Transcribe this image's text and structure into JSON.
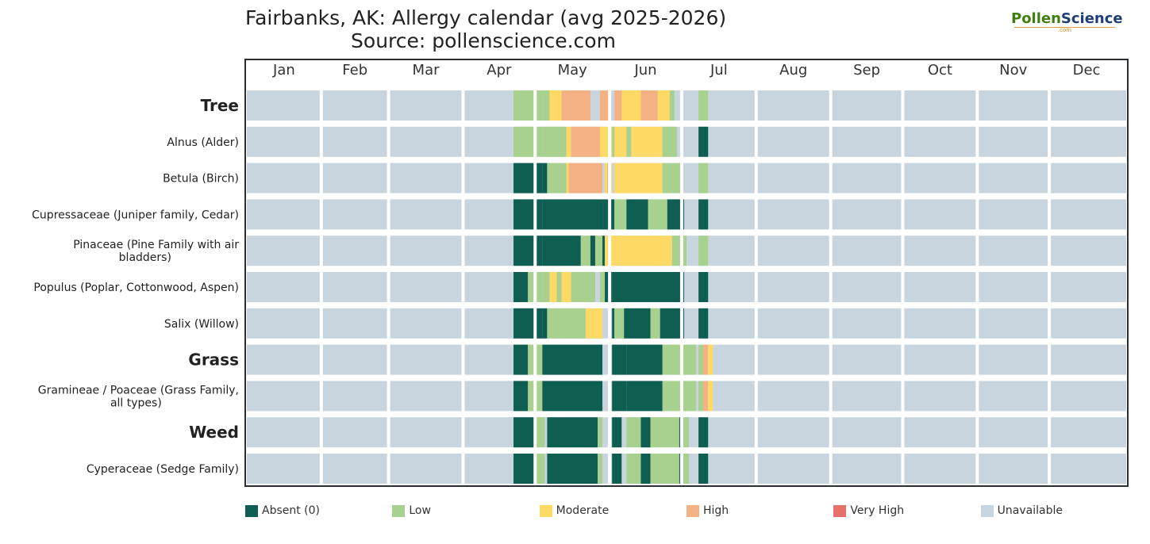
{
  "title_line1": "Fairbanks, AK: Allergy calendar (avg 2025-2026)",
  "title_line2": "Source: pollenscience.com",
  "logo": {
    "part1": "Pollen",
    "part2": "Science",
    "sub": ".com"
  },
  "chart_data": {
    "type": "heatmap",
    "title": "Fairbanks, AK: Allergy calendar (avg 2025-2026)",
    "subtitle": "Source: pollenscience.com",
    "x_axis": {
      "unit": "day of year",
      "range": [
        1,
        366
      ],
      "months": [
        "Jan",
        "Feb",
        "Mar",
        "Apr",
        "May",
        "Jun",
        "Jul",
        "Aug",
        "Sep",
        "Oct",
        "Nov",
        "Dec"
      ]
    },
    "levels": [
      {
        "key": "absent",
        "label": "Absent (0)",
        "color": "#0f5e52"
      },
      {
        "key": "low",
        "label": "Low",
        "color": "#a8d18f"
      },
      {
        "key": "moderate",
        "label": "Moderate",
        "color": "#fdd965"
      },
      {
        "key": "high",
        "label": "High",
        "color": "#f4b183"
      },
      {
        "key": "very_high",
        "label": "Very High",
        "color": "#e6716b"
      },
      {
        "key": "unavailable",
        "label": "Unavailable",
        "color": "#c9d5de"
      }
    ],
    "default_level": "unavailable",
    "rows": [
      {
        "label": "Tree",
        "category": true,
        "segments": [
          [
            112,
            123,
            "low"
          ],
          [
            124,
            126,
            "low"
          ],
          [
            127,
            129,
            "moderate"
          ],
          [
            130,
            131,
            "moderate"
          ],
          [
            132,
            143,
            "high"
          ],
          [
            148,
            151,
            "high"
          ],
          [
            154,
            156,
            "high"
          ],
          [
            157,
            164,
            "moderate"
          ],
          [
            165,
            171,
            "high"
          ],
          [
            172,
            176,
            "moderate"
          ],
          [
            177,
            178,
            "low"
          ],
          [
            189,
            192,
            "low"
          ]
        ]
      },
      {
        "label": "Alnus (Alder)",
        "segments": [
          [
            112,
            123,
            "low"
          ],
          [
            124,
            133,
            "low"
          ],
          [
            134,
            135,
            "moderate"
          ],
          [
            136,
            147,
            "high"
          ],
          [
            148,
            152,
            "moderate"
          ],
          [
            153,
            153,
            "low"
          ],
          [
            154,
            158,
            "moderate"
          ],
          [
            159,
            160,
            "low"
          ],
          [
            161,
            173,
            "moderate"
          ],
          [
            174,
            179,
            "low"
          ],
          [
            189,
            192,
            "absent"
          ]
        ]
      },
      {
        "label": "Betula (Birch)",
        "segments": [
          [
            112,
            123,
            "absent"
          ],
          [
            124,
            125,
            "absent"
          ],
          [
            126,
            133,
            "low"
          ],
          [
            134,
            134,
            "moderate"
          ],
          [
            135,
            147,
            "high"
          ],
          [
            148,
            148,
            "high"
          ],
          [
            150,
            150,
            "moderate"
          ],
          [
            151,
            151,
            "high"
          ],
          [
            152,
            152,
            "moderate"
          ],
          [
            154,
            173,
            "moderate"
          ],
          [
            174,
            181,
            "low"
          ],
          [
            189,
            192,
            "low"
          ]
        ]
      },
      {
        "label": "Cupressaceae (Juniper family, Cedar)",
        "segments": [
          [
            112,
            123,
            "absent"
          ],
          [
            124,
            148,
            "absent"
          ],
          [
            149,
            153,
            "absent"
          ],
          [
            154,
            158,
            "low"
          ],
          [
            159,
            167,
            "absent"
          ],
          [
            168,
            175,
            "low"
          ],
          [
            176,
            182,
            "absent"
          ],
          [
            189,
            192,
            "absent"
          ]
        ]
      },
      {
        "label": "Pinaceae (Pine Family with air bladders)",
        "segments": [
          [
            112,
            123,
            "absent"
          ],
          [
            124,
            139,
            "absent"
          ],
          [
            140,
            143,
            "low"
          ],
          [
            144,
            145,
            "absent"
          ],
          [
            146,
            148,
            "low"
          ],
          [
            149,
            149,
            "absent"
          ],
          [
            150,
            155,
            "moderate"
          ],
          [
            156,
            177,
            "moderate"
          ],
          [
            178,
            183,
            "low"
          ],
          [
            189,
            192,
            "low"
          ]
        ]
      },
      {
        "label": "Populus (Poplar, Cottonwood, Aspen)",
        "segments": [
          [
            112,
            117,
            "absent"
          ],
          [
            118,
            123,
            "low"
          ],
          [
            124,
            126,
            "low"
          ],
          [
            127,
            129,
            "moderate"
          ],
          [
            130,
            131,
            "low"
          ],
          [
            132,
            135,
            "moderate"
          ],
          [
            136,
            145,
            "low"
          ],
          [
            148,
            149,
            "low"
          ],
          [
            150,
            152,
            "absent"
          ],
          [
            153,
            182,
            "absent"
          ],
          [
            189,
            192,
            "absent"
          ]
        ]
      },
      {
        "label": "Salix (Willow)",
        "segments": [
          [
            112,
            123,
            "absent"
          ],
          [
            124,
            125,
            "absent"
          ],
          [
            126,
            141,
            "low"
          ],
          [
            142,
            148,
            "moderate"
          ],
          [
            153,
            153,
            "absent"
          ],
          [
            154,
            157,
            "low"
          ],
          [
            158,
            168,
            "absent"
          ],
          [
            169,
            172,
            "low"
          ],
          [
            173,
            182,
            "absent"
          ],
          [
            189,
            192,
            "absent"
          ]
        ]
      },
      {
        "label": "Grass",
        "category": true,
        "segments": [
          [
            112,
            117,
            "absent"
          ],
          [
            118,
            123,
            "low"
          ],
          [
            124,
            148,
            "absent"
          ],
          [
            153,
            158,
            "absent"
          ],
          [
            159,
            173,
            "absent"
          ],
          [
            174,
            187,
            "low"
          ],
          [
            189,
            190,
            "low"
          ],
          [
            191,
            192,
            "high"
          ],
          [
            193,
            194,
            "moderate"
          ]
        ]
      },
      {
        "label": "Gramineae / Poaceae (Grass Family, all types)",
        "segments": [
          [
            112,
            117,
            "absent"
          ],
          [
            118,
            123,
            "low"
          ],
          [
            124,
            148,
            "absent"
          ],
          [
            153,
            158,
            "absent"
          ],
          [
            159,
            173,
            "absent"
          ],
          [
            174,
            187,
            "low"
          ],
          [
            189,
            190,
            "low"
          ],
          [
            191,
            192,
            "high"
          ],
          [
            193,
            194,
            "moderate"
          ]
        ]
      },
      {
        "label": "Weed",
        "category": true,
        "segments": [
          [
            112,
            120,
            "absent"
          ],
          [
            121,
            123,
            "low"
          ],
          [
            124,
            124,
            "low"
          ],
          [
            126,
            146,
            "absent"
          ],
          [
            147,
            148,
            "low"
          ],
          [
            153,
            156,
            "absent"
          ],
          [
            159,
            164,
            "low"
          ],
          [
            165,
            168,
            "absent"
          ],
          [
            169,
            180,
            "low"
          ],
          [
            181,
            181,
            "absent"
          ],
          [
            182,
            184,
            "low"
          ],
          [
            189,
            192,
            "absent"
          ]
        ]
      },
      {
        "label": "Cyperaceae (Sedge Family)",
        "segments": [
          [
            112,
            120,
            "absent"
          ],
          [
            121,
            123,
            "low"
          ],
          [
            124,
            124,
            "low"
          ],
          [
            126,
            146,
            "absent"
          ],
          [
            147,
            148,
            "low"
          ],
          [
            153,
            156,
            "absent"
          ],
          [
            159,
            164,
            "low"
          ],
          [
            165,
            168,
            "absent"
          ],
          [
            169,
            180,
            "low"
          ],
          [
            181,
            181,
            "absent"
          ],
          [
            182,
            184,
            "low"
          ],
          [
            189,
            192,
            "absent"
          ]
        ]
      }
    ]
  }
}
